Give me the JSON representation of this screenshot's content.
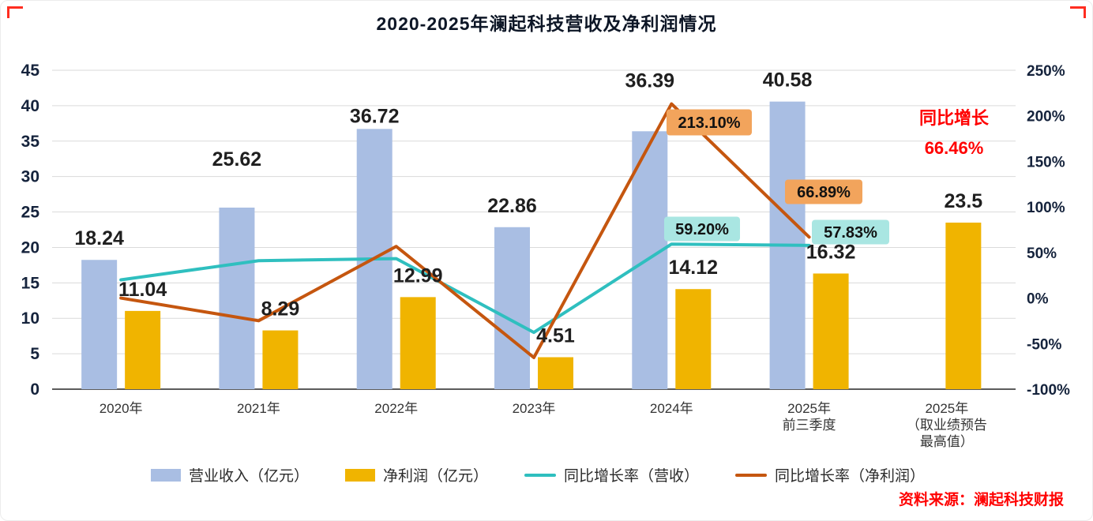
{
  "title": "2020-2025年澜起科技营收及净利润情况",
  "growth_annotation": {
    "line1": "同比增长",
    "line2": "66.46%"
  },
  "source_note": "资料来源：澜起科技财报",
  "colors": {
    "revenue_bar": "#A9BEE3",
    "profit_bar": "#F0B400",
    "revenue_growth_line": "#2FBFBF",
    "profit_growth_line": "#C5560F",
    "callout_orange": "#F2A45C",
    "callout_teal": "#A9E6E2",
    "highlight_red": "#FF0000"
  },
  "chart_data": {
    "type": "combo bar-line",
    "title": "2020-2025年澜起科技营收及净利润情况",
    "categories": [
      [
        "2020年"
      ],
      [
        "2021年"
      ],
      [
        "2022年"
      ],
      [
        "2023年"
      ],
      [
        "2024年"
      ],
      [
        "2025年",
        "前三季度"
      ],
      [
        "2025年",
        "（取业绩预告",
        "最高值）"
      ]
    ],
    "left_axis": {
      "min": 0,
      "max": 45,
      "step": 5
    },
    "right_axis": {
      "min": -100,
      "max": 250,
      "step": 50,
      "suffix": "%"
    },
    "series": [
      {
        "name": "营业收入（亿元）",
        "kind": "bar",
        "axis": "left",
        "color": "#A9BEE3",
        "values": [
          18.24,
          25.62,
          36.72,
          22.86,
          36.39,
          40.58,
          null
        ],
        "labels": [
          "18.24",
          "25.62",
          "36.72",
          "22.86",
          "36.39",
          "40.58",
          null
        ]
      },
      {
        "name": "净利润（亿元）",
        "kind": "bar",
        "axis": "left",
        "color": "#F0B400",
        "values": [
          11.04,
          8.29,
          12.99,
          4.51,
          14.12,
          16.32,
          23.5
        ],
        "labels": [
          "11.04",
          "8.29",
          "12.99",
          "4.51",
          "14.12",
          "16.32",
          "23.5"
        ]
      },
      {
        "name": "同比增长率（营收）",
        "kind": "line",
        "axis": "right",
        "color": "#2FBFBF",
        "values": [
          20,
          41,
          43.3,
          -37.7,
          59.2,
          57.83,
          null
        ]
      },
      {
        "name": "同比增长率（净利润）",
        "kind": "line",
        "axis": "right",
        "color": "#C5560F",
        "values": [
          0,
          -24.9,
          56.7,
          -65.3,
          213.1,
          66.89,
          null
        ]
      }
    ],
    "callouts": [
      {
        "text": "213.10%",
        "style": "orange"
      },
      {
        "text": "66.89%",
        "style": "orange"
      },
      {
        "text": "59.20%",
        "style": "teal"
      },
      {
        "text": "57.83%",
        "style": "teal"
      }
    ]
  }
}
